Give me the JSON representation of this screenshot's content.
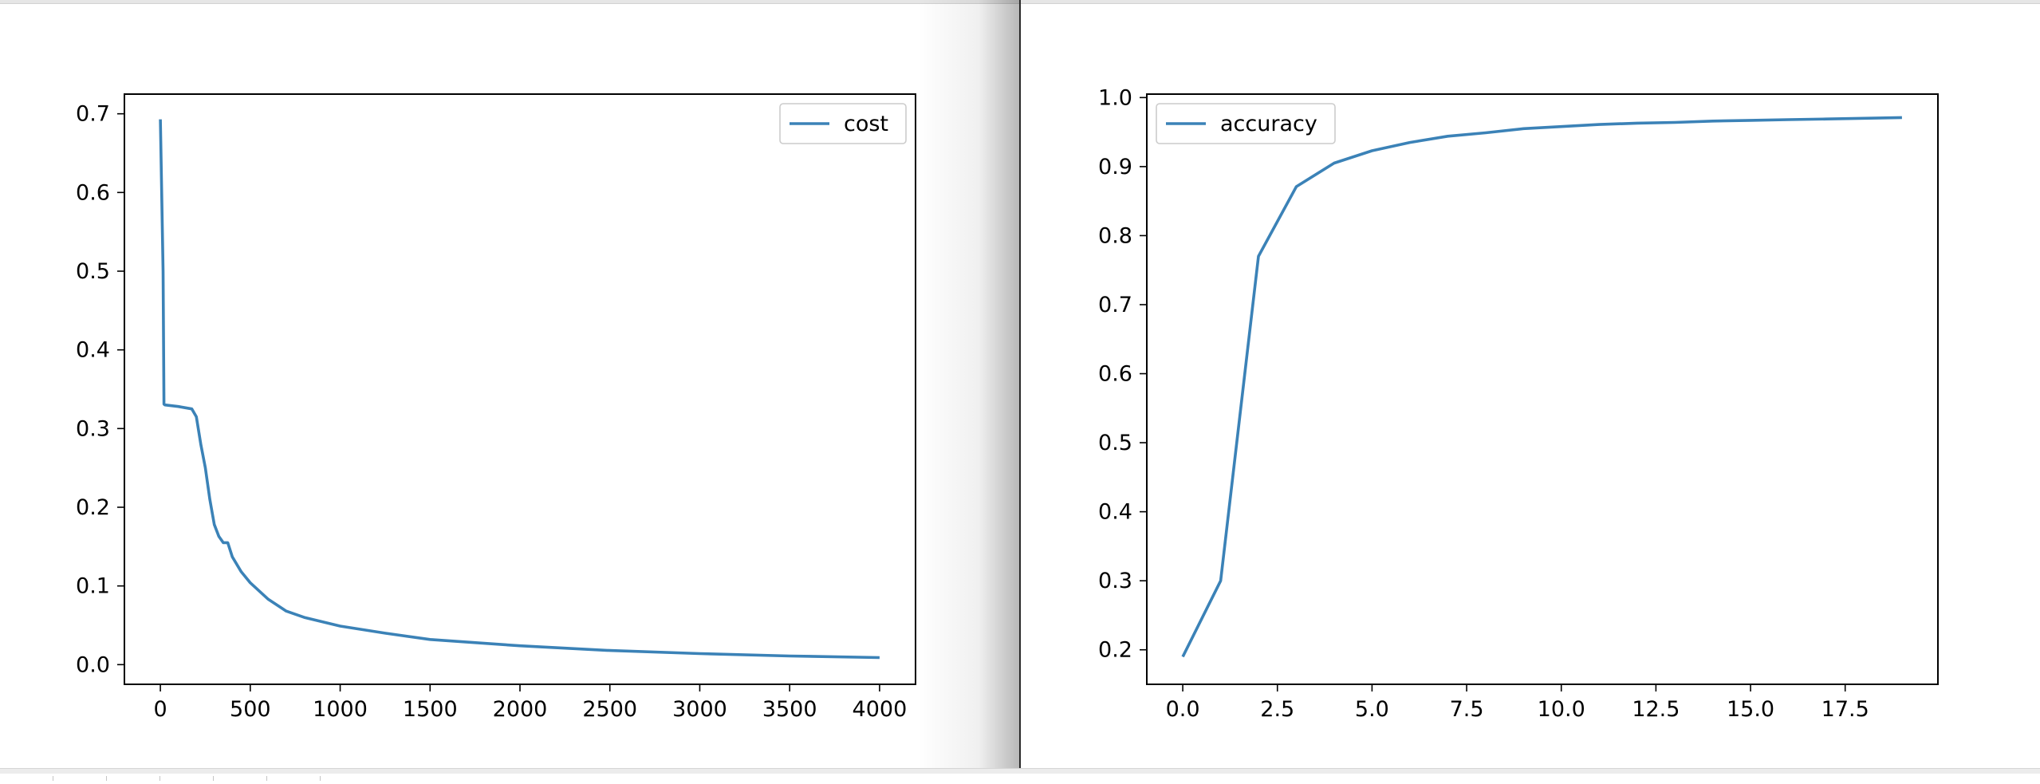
{
  "charts": {
    "cost": {
      "legend_label": "cost",
      "x_ticks": [
        "0",
        "500",
        "1000",
        "1500",
        "2000",
        "2500",
        "3000",
        "3500",
        "4000"
      ],
      "y_ticks": [
        "0.0",
        "0.1",
        "0.2",
        "0.3",
        "0.4",
        "0.5",
        "0.6",
        "0.7"
      ]
    },
    "accuracy": {
      "legend_label": "accuracy",
      "x_ticks": [
        "0.0",
        "2.5",
        "5.0",
        "7.5",
        "10.0",
        "12.5",
        "15.0",
        "17.5"
      ],
      "y_ticks": [
        "0.2",
        "0.3",
        "0.4",
        "0.5",
        "0.6",
        "0.7",
        "0.8",
        "0.9",
        "1.0"
      ]
    }
  },
  "chart_data": [
    {
      "type": "line",
      "title": "",
      "xlabel": "",
      "ylabel": "",
      "xlim": [
        -200,
        4200
      ],
      "ylim": [
        -0.025,
        0.725
      ],
      "grid": false,
      "legend_position": "upper right",
      "line_color": "#3b82b7",
      "series": [
        {
          "name": "cost",
          "x": [
            0,
            15,
            20,
            25,
            100,
            175,
            200,
            225,
            250,
            275,
            300,
            325,
            350,
            375,
            400,
            450,
            500,
            600,
            700,
            800,
            1000,
            1250,
            1500,
            2000,
            2500,
            3000,
            3500,
            4000
          ],
          "y": [
            0.693,
            0.5,
            0.331,
            0.33,
            0.328,
            0.325,
            0.315,
            0.28,
            0.25,
            0.21,
            0.178,
            0.163,
            0.155,
            0.155,
            0.137,
            0.118,
            0.104,
            0.083,
            0.068,
            0.06,
            0.049,
            0.04,
            0.032,
            0.024,
            0.018,
            0.014,
            0.011,
            0.009
          ]
        }
      ]
    },
    {
      "type": "line",
      "title": "",
      "xlabel": "",
      "ylabel": "",
      "xlim": [
        -0.95,
        19.95
      ],
      "ylim": [
        0.15,
        1.005
      ],
      "grid": false,
      "legend_position": "upper left",
      "line_color": "#3b82b7",
      "series": [
        {
          "name": "accuracy",
          "x": [
            0,
            1,
            2,
            3,
            4,
            5,
            6,
            7,
            8,
            9,
            10,
            11,
            12,
            13,
            14,
            15,
            16,
            17,
            18,
            19
          ],
          "y": [
            0.19,
            0.3,
            0.77,
            0.871,
            0.905,
            0.923,
            0.935,
            0.944,
            0.949,
            0.955,
            0.958,
            0.961,
            0.963,
            0.964,
            0.966,
            0.967,
            0.968,
            0.969,
            0.97,
            0.971
          ]
        }
      ]
    }
  ]
}
